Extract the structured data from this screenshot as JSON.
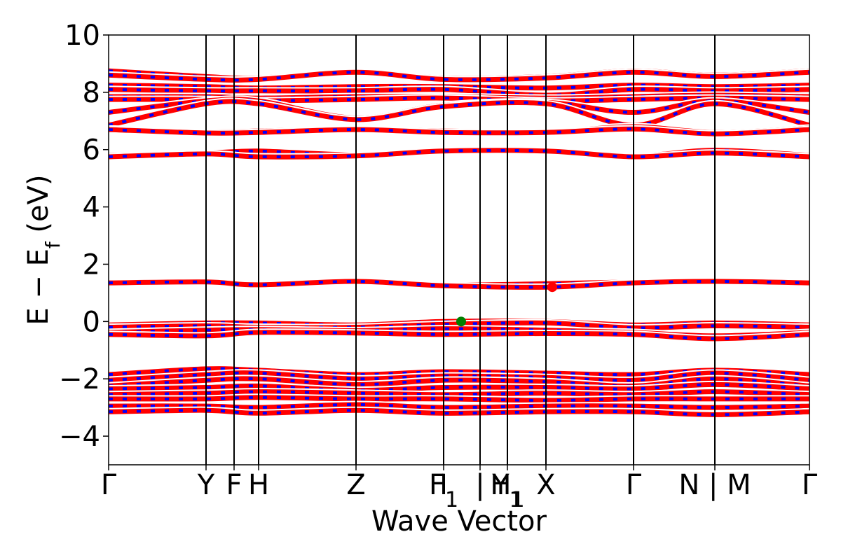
{
  "chart_data": {
    "type": "line",
    "title": "",
    "xlabel": "Wave Vector",
    "ylabel": "E − E",
    "ylabel_subscript": "f",
    "ylabel_unit": " (eV)",
    "ylim": [
      -5,
      10
    ],
    "yticks": [
      -4,
      -2,
      0,
      2,
      4,
      6,
      8,
      10
    ],
    "ytick_labels": [
      "−4",
      "−2",
      "0",
      "2",
      "4",
      "6",
      "8",
      "10"
    ],
    "xlim": [
      0,
      1
    ],
    "kpoints": [
      {
        "label": "Γ",
        "sub": "",
        "x": 0.0
      },
      {
        "label": "Y",
        "sub": "",
        "x": 0.139
      },
      {
        "label": "F",
        "sub": "",
        "x": 0.179
      },
      {
        "label": "H",
        "sub": "",
        "x": 0.214
      },
      {
        "label": "Z",
        "sub": "",
        "x": 0.353
      },
      {
        "label": "I",
        "sub": "",
        "x": 0.478
      },
      {
        "label": "F",
        "sub": "1",
        "x": 0.478
      },
      {
        "label": "|",
        "sub": "",
        "x": 0.53
      },
      {
        "label": "H",
        "sub": "1",
        "x": 0.569
      },
      {
        "label": "Y",
        "sub": "1",
        "x": 0.569
      },
      {
        "label": "X",
        "sub": "",
        "x": 0.624
      },
      {
        "label": "Γ",
        "sub": "",
        "x": 0.749
      },
      {
        "label": "N | M",
        "sub": "",
        "x": 0.865
      },
      {
        "label": "Γ",
        "sub": "",
        "x": 1.0
      }
    ],
    "vertical_lines_x": [
      0.139,
      0.179,
      0.214,
      0.353,
      0.478,
      0.53,
      0.569,
      0.624,
      0.749,
      0.865
    ],
    "band_style": {
      "color_primary": "#ff0000",
      "color_secondary": "#0000ff",
      "outline": "#ffffff"
    },
    "bands": [
      {
        "x": [
          0,
          0.139,
          0.214,
          0.353,
          0.478,
          0.624,
          0.749,
          0.865,
          1.0
        ],
        "y": [
          8.75,
          8.55,
          8.5,
          8.72,
          8.5,
          8.55,
          8.75,
          8.6,
          8.75
        ]
      },
      {
        "x": [
          0,
          0.139,
          0.214,
          0.353,
          0.478,
          0.624,
          0.749,
          0.865,
          1.0
        ],
        "y": [
          8.6,
          8.45,
          8.45,
          8.7,
          8.45,
          8.5,
          8.7,
          8.55,
          8.7
        ]
      },
      {
        "x": [
          0,
          0.139,
          0.214,
          0.353,
          0.478,
          0.624,
          0.749,
          0.865,
          1.0
        ],
        "y": [
          8.25,
          8.2,
          8.15,
          8.2,
          8.2,
          8.15,
          8.25,
          8.2,
          8.25
        ]
      },
      {
        "x": [
          0,
          0.139,
          0.214,
          0.353,
          0.478,
          0.624,
          0.749,
          0.865,
          1.0
        ],
        "y": [
          8.1,
          8.05,
          8.05,
          8.05,
          8.1,
          7.9,
          8.1,
          8.05,
          8.1
        ]
      },
      {
        "x": [
          0,
          0.139,
          0.214,
          0.353,
          0.478,
          0.624,
          0.749,
          0.865,
          1.0
        ],
        "y": [
          7.85,
          7.85,
          7.8,
          7.85,
          7.85,
          7.8,
          7.85,
          7.9,
          7.85
        ]
      },
      {
        "x": [
          0,
          0.139,
          0.214,
          0.353,
          0.478,
          0.624,
          0.749,
          0.865,
          1.0
        ],
        "y": [
          7.75,
          7.75,
          7.7,
          7.75,
          7.8,
          7.7,
          7.75,
          7.8,
          7.75
        ]
      },
      {
        "x": [
          0,
          0.139,
          0.214,
          0.353,
          0.478,
          0.624,
          0.749,
          0.865,
          1.0
        ],
        "y": [
          7.3,
          7.7,
          7.7,
          7.1,
          7.55,
          7.65,
          7.3,
          7.7,
          7.3
        ]
      },
      {
        "x": [
          0,
          0.139,
          0.214,
          0.353,
          0.478,
          0.624,
          0.749,
          0.865,
          1.0
        ],
        "y": [
          6.85,
          7.6,
          7.6,
          7.05,
          7.5,
          7.6,
          6.85,
          7.6,
          6.85
        ]
      },
      {
        "x": [
          0,
          0.139,
          0.214,
          0.353,
          0.478,
          0.624,
          0.749,
          0.865,
          1.0
        ],
        "y": [
          6.72,
          6.62,
          6.65,
          6.72,
          6.65,
          6.62,
          6.8,
          6.6,
          6.75
        ]
      },
      {
        "x": [
          0,
          0.139,
          0.214,
          0.353,
          0.478,
          0.624,
          0.749,
          0.865,
          1.0
        ],
        "y": [
          6.7,
          6.58,
          6.6,
          6.7,
          6.6,
          6.6,
          6.72,
          6.55,
          6.7
        ]
      },
      {
        "x": [
          0,
          0.139,
          0.214,
          0.353,
          0.478,
          0.624,
          0.749,
          0.865,
          1.0
        ],
        "y": [
          5.8,
          5.88,
          5.95,
          5.82,
          5.98,
          5.98,
          5.78,
          5.98,
          5.8
        ]
      },
      {
        "x": [
          0,
          0.139,
          0.214,
          0.353,
          0.478,
          0.624,
          0.749,
          0.865,
          1.0
        ],
        "y": [
          5.75,
          5.85,
          5.75,
          5.78,
          5.95,
          5.95,
          5.75,
          5.88,
          5.75
        ]
      },
      {
        "x": [
          0,
          0.139,
          0.214,
          0.353,
          0.478,
          0.624,
          0.749,
          0.865,
          1.0
        ],
        "y": [
          1.38,
          1.4,
          1.3,
          1.42,
          1.28,
          1.32,
          1.38,
          1.42,
          1.38
        ]
      },
      {
        "x": [
          0,
          0.139,
          0.214,
          0.353,
          0.478,
          0.624,
          0.749,
          0.865,
          1.0
        ],
        "y": [
          1.35,
          1.38,
          1.28,
          1.4,
          1.25,
          1.2,
          1.35,
          1.4,
          1.35
        ]
      },
      {
        "x": [
          0,
          0.139,
          0.214,
          0.353,
          0.478,
          0.624,
          0.749,
          0.865,
          1.0
        ],
        "y": [
          -0.12,
          -0.05,
          -0.05,
          -0.12,
          0.0,
          0.0,
          -0.12,
          -0.05,
          -0.12
        ]
      },
      {
        "x": [
          0,
          0.139,
          0.214,
          0.353,
          0.478,
          0.624,
          0.749,
          0.865,
          1.0
        ],
        "y": [
          -0.2,
          -0.15,
          -0.2,
          -0.2,
          -0.1,
          -0.05,
          -0.22,
          -0.15,
          -0.2
        ]
      },
      {
        "x": [
          0,
          0.139,
          0.214,
          0.353,
          0.478,
          0.624,
          0.749,
          0.865,
          1.0
        ],
        "y": [
          -0.38,
          -0.3,
          -0.28,
          -0.32,
          -0.25,
          -0.3,
          -0.38,
          -0.5,
          -0.38
        ]
      },
      {
        "x": [
          0,
          0.139,
          0.214,
          0.353,
          0.478,
          0.624,
          0.749,
          0.865,
          1.0
        ],
        "y": [
          -0.45,
          -0.5,
          -0.38,
          -0.4,
          -0.45,
          -0.42,
          -0.45,
          -0.6,
          -0.45
        ]
      },
      {
        "x": [
          0,
          0.139,
          0.214,
          0.353,
          0.478,
          0.624,
          0.749,
          0.865,
          1.0
        ],
        "y": [
          -1.85,
          -1.65,
          -1.7,
          -1.85,
          -1.75,
          -1.8,
          -1.85,
          -1.7,
          -1.85
        ]
      },
      {
        "x": [
          0,
          0.139,
          0.214,
          0.353,
          0.478,
          0.624,
          0.749,
          0.865,
          1.0
        ],
        "y": [
          -2.05,
          -1.85,
          -1.8,
          -2.0,
          -1.9,
          -1.95,
          -2.05,
          -1.8,
          -2.05
        ]
      },
      {
        "x": [
          0,
          0.139,
          0.214,
          0.353,
          0.478,
          0.624,
          0.749,
          0.865,
          1.0
        ],
        "y": [
          -2.25,
          -2.05,
          -2.0,
          -2.2,
          -2.05,
          -2.1,
          -2.25,
          -2.0,
          -2.25
        ]
      },
      {
        "x": [
          0,
          0.139,
          0.214,
          0.353,
          0.478,
          0.624,
          0.749,
          0.865,
          1.0
        ],
        "y": [
          -2.35,
          -2.3,
          -2.25,
          -2.4,
          -2.3,
          -2.3,
          -2.35,
          -2.2,
          -2.35
        ]
      },
      {
        "x": [
          0,
          0.139,
          0.214,
          0.353,
          0.478,
          0.624,
          0.749,
          0.865,
          1.0
        ],
        "y": [
          -2.55,
          -2.5,
          -2.45,
          -2.5,
          -2.55,
          -2.5,
          -2.55,
          -2.45,
          -2.55
        ]
      },
      {
        "x": [
          0,
          0.139,
          0.214,
          0.353,
          0.478,
          0.624,
          0.749,
          0.865,
          1.0
        ],
        "y": [
          -2.7,
          -2.7,
          -2.65,
          -2.7,
          -2.7,
          -2.75,
          -2.7,
          -2.7,
          -2.7
        ]
      },
      {
        "x": [
          0,
          0.139,
          0.214,
          0.353,
          0.478,
          0.624,
          0.749,
          0.865,
          1.0
        ],
        "y": [
          -2.95,
          -2.95,
          -3.0,
          -2.9,
          -3.0,
          -2.95,
          -2.95,
          -3.0,
          -2.95
        ]
      },
      {
        "x": [
          0,
          0.139,
          0.214,
          0.353,
          0.478,
          0.624,
          0.749,
          0.865,
          1.0
        ],
        "y": [
          -3.15,
          -3.1,
          -3.2,
          -3.1,
          -3.2,
          -3.15,
          -3.15,
          -3.25,
          -3.15
        ]
      }
    ],
    "markers": [
      {
        "name": "valence-band-maximum",
        "x": 0.503,
        "y": 0.0,
        "color": "#008000"
      },
      {
        "name": "conduction-band-minimum",
        "x": 0.633,
        "y": 1.2,
        "color": "#ff0000"
      }
    ]
  }
}
